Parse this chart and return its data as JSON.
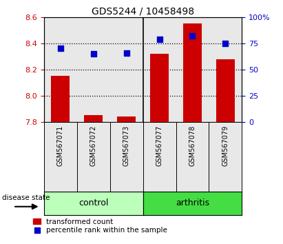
{
  "title": "GDS5244 / 10458498",
  "samples": [
    "GSM567071",
    "GSM567072",
    "GSM567073",
    "GSM567077",
    "GSM567078",
    "GSM567079"
  ],
  "transformed_count": [
    8.15,
    7.855,
    7.84,
    8.32,
    8.55,
    8.28
  ],
  "percentile_rank": [
    70,
    65,
    66,
    79,
    82,
    75
  ],
  "left_ylim": [
    7.8,
    8.6
  ],
  "right_ylim": [
    0,
    100
  ],
  "left_yticks": [
    7.8,
    8.0,
    8.2,
    8.4,
    8.6
  ],
  "right_yticks": [
    0,
    25,
    50,
    75,
    100
  ],
  "group_colors": {
    "control": "#BBFFBB",
    "arthritis": "#44DD44"
  },
  "bar_color": "#CC0000",
  "dot_color": "#0000CC",
  "bar_bottom": 7.8,
  "bar_width": 0.55,
  "plot_bg_color": "#E8E8E8",
  "tick_label_color_left": "#CC0000",
  "tick_label_color_right": "#0000CC",
  "disease_state_label": "disease state",
  "legend_bar_label": "transformed count",
  "legend_dot_label": "percentile rank within the sample",
  "grid_dotted_at": [
    8.0,
    8.2,
    8.4
  ]
}
